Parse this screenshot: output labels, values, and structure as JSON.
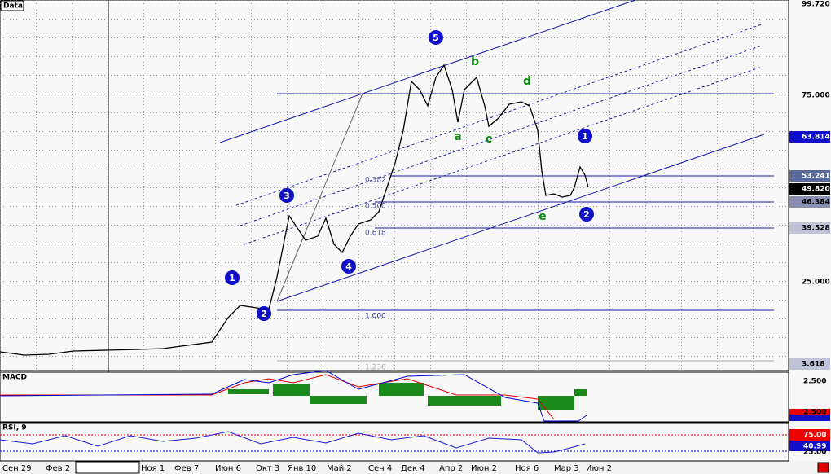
{
  "header": {
    "title": "Data"
  },
  "price_axis": [
    "99.720",
    "75.000",
    "63.814",
    "53.241",
    "49.820",
    "46.384",
    "39.528",
    "25.000",
    "3.618"
  ],
  "fib_levels": [
    "0.382",
    "0.500",
    "0.618",
    "1.000",
    "1.236"
  ],
  "waves": [
    "5",
    "3",
    "1",
    "2",
    "4",
    "1",
    "2"
  ],
  "corrections": [
    "b",
    "d",
    "a",
    "c",
    "e"
  ],
  "macd": {
    "label": "MACD",
    "axis": [
      "2.500",
      "2.500"
    ]
  },
  "rsi": {
    "label": "RSI, 9",
    "axis": [
      "75.00",
      "40.99",
      "25.00"
    ]
  },
  "dates": [
    "Сен 29",
    "Фев 2",
    "Ноя 1",
    "Фев 7",
    "Июн 6",
    "Окт 3",
    "Янв 10",
    "Май 2",
    "Сен 4",
    "Дек 4",
    "Апр 2",
    "Июн 2",
    "Ноя 6",
    "Мар 3",
    "Июн 2"
  ]
}
